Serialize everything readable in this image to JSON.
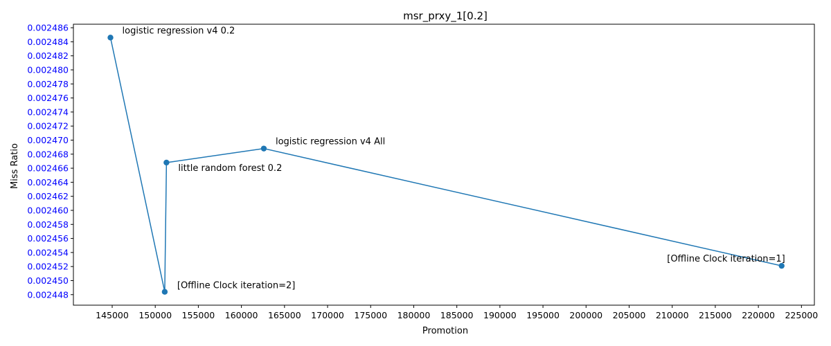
{
  "chart_data": {
    "type": "line",
    "title": "msr_prxy_1[0.2]",
    "xlabel": "Promotion",
    "ylabel": "Miss Ratio",
    "xlim": [
      140500,
      226500
    ],
    "ylim": [
      0.0024465,
      0.0024865
    ],
    "xticks": [
      145000,
      150000,
      155000,
      160000,
      165000,
      170000,
      175000,
      180000,
      185000,
      190000,
      195000,
      200000,
      205000,
      210000,
      215000,
      220000,
      225000
    ],
    "yticks": [
      0.002448,
      0.00245,
      0.002452,
      0.002454,
      0.002456,
      0.002458,
      0.00246,
      0.002462,
      0.002464,
      0.002466,
      0.002468,
      0.00247,
      0.002472,
      0.002474,
      0.002476,
      0.002478,
      0.00248,
      0.002482,
      0.002484,
      0.002486
    ],
    "ytick_color": "#0000ff",
    "series": [
      {
        "color": "#1f77b4",
        "points": [
          {
            "x": 144800,
            "y": 0.0024846,
            "label": "logistic regression v4 0.2"
          },
          {
            "x": 151100,
            "y": 0.0024484,
            "label": "[Offline Clock iteration=2]"
          },
          {
            "x": 151300,
            "y": 0.0024668,
            "label": "little random forest 0.2"
          },
          {
            "x": 162600,
            "y": 0.0024688,
            "label": "logistic regression v4 All"
          },
          {
            "x": 222700,
            "y": 0.0024521,
            "label": "[Offline Clock iteration=1]"
          }
        ]
      }
    ],
    "grid": false,
    "legend": "none"
  }
}
